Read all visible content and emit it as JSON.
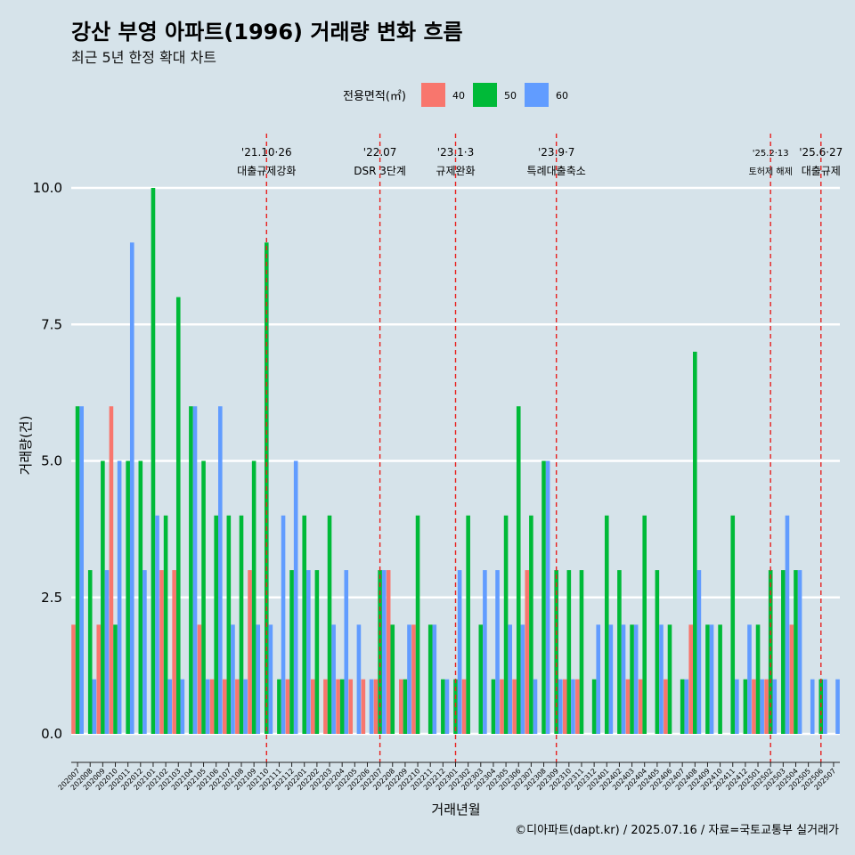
{
  "title": "강산 부영 아파트(1996) 거래량 변화 흐름",
  "subtitle": "최근 5년 한정 확대 차트",
  "caption": "©디아파트(dapt.kr) / 2025.07.16 / 자료=국토교통부 실거래가",
  "chart_data": {
    "type": "bar",
    "title": "강산 부영 아파트(1996) 거래량 변화 흐름",
    "subtitle": "최근 5년 한정 확대 차트",
    "xlabel": "거래년월",
    "ylabel": "거래량(건)",
    "ylim": [
      0,
      10
    ],
    "yticks": [
      "0.0",
      "2.5",
      "5.0",
      "7.5",
      "10.0"
    ],
    "grid": true,
    "legend": {
      "title": "전용면적(㎡)",
      "position": "top"
    },
    "categories": [
      "202007",
      "202008",
      "202009",
      "202010",
      "202011",
      "202012",
      "202101",
      "202102",
      "202103",
      "202104",
      "202105",
      "202106",
      "202107",
      "202108",
      "202109",
      "202110",
      "202111",
      "202112",
      "202201",
      "202202",
      "202203",
      "202204",
      "202205",
      "202206",
      "202207",
      "202208",
      "202209",
      "202210",
      "202211",
      "202212",
      "202301",
      "202302",
      "202303",
      "202304",
      "202305",
      "202306",
      "202307",
      "202308",
      "202309",
      "202310",
      "202311",
      "202312",
      "202401",
      "202402",
      "202403",
      "202404",
      "202405",
      "202406",
      "202407",
      "202408",
      "202409",
      "202410",
      "202411",
      "202412",
      "202501",
      "202502",
      "202503",
      "202504",
      "202505",
      "202506",
      "202507"
    ],
    "series": [
      {
        "name": "40",
        "color": "#f8766d",
        "values": [
          2,
          0,
          2,
          6,
          0,
          0,
          0,
          3,
          3,
          0,
          2,
          1,
          1,
          1,
          3,
          0,
          0,
          1,
          0,
          1,
          1,
          1,
          1,
          1,
          1,
          3,
          1,
          2,
          0,
          0,
          0,
          1,
          0,
          0,
          1,
          1,
          3,
          0,
          0,
          1,
          1,
          0,
          0,
          0,
          1,
          1,
          0,
          1,
          0,
          2,
          0,
          0,
          0,
          0,
          1,
          1,
          0,
          2,
          0,
          0,
          0
        ]
      },
      {
        "name": "50",
        "color": "#00ba38",
        "values": [
          6,
          3,
          5,
          2,
          5,
          5,
          10,
          4,
          8,
          6,
          5,
          4,
          4,
          4,
          5,
          9,
          1,
          3,
          4,
          3,
          4,
          1,
          0,
          0,
          3,
          2,
          1,
          4,
          2,
          1,
          1,
          4,
          2,
          1,
          4,
          6,
          4,
          5,
          3,
          3,
          3,
          1,
          4,
          3,
          2,
          4,
          3,
          2,
          1,
          7,
          2,
          2,
          4,
          1,
          2,
          3,
          3,
          3,
          0,
          1,
          0
        ]
      },
      {
        "name": "60",
        "color": "#619cff",
        "values": [
          6,
          1,
          3,
          5,
          9,
          3,
          4,
          1,
          1,
          6,
          1,
          6,
          2,
          1,
          2,
          2,
          4,
          5,
          3,
          0,
          2,
          3,
          2,
          1,
          3,
          0,
          2,
          0,
          2,
          1,
          3,
          0,
          3,
          3,
          2,
          2,
          1,
          5,
          1,
          1,
          0,
          2,
          2,
          2,
          2,
          0,
          2,
          0,
          1,
          3,
          2,
          0,
          1,
          2,
          1,
          1,
          4,
          3,
          1,
          1,
          1
        ]
      }
    ],
    "annotations": [
      {
        "category": "202110",
        "line1": "'21.10·26",
        "line2": "대출규제강화",
        "small": false
      },
      {
        "category": "202207",
        "line1": "'22.07",
        "line2": "DSR 3단계",
        "small": false
      },
      {
        "category": "202301",
        "line1": "'23.1·3",
        "line2": "규제완화",
        "small": false
      },
      {
        "category": "202309",
        "line1": "'23.9·7",
        "line2": "특례대출축소",
        "small": false
      },
      {
        "category": "202502",
        "line1": "'25.2·13",
        "line2": "토허제 해제",
        "small": true
      },
      {
        "category": "202506",
        "line1": "'25.6·27",
        "line2": "대출규제",
        "small": false
      }
    ]
  }
}
